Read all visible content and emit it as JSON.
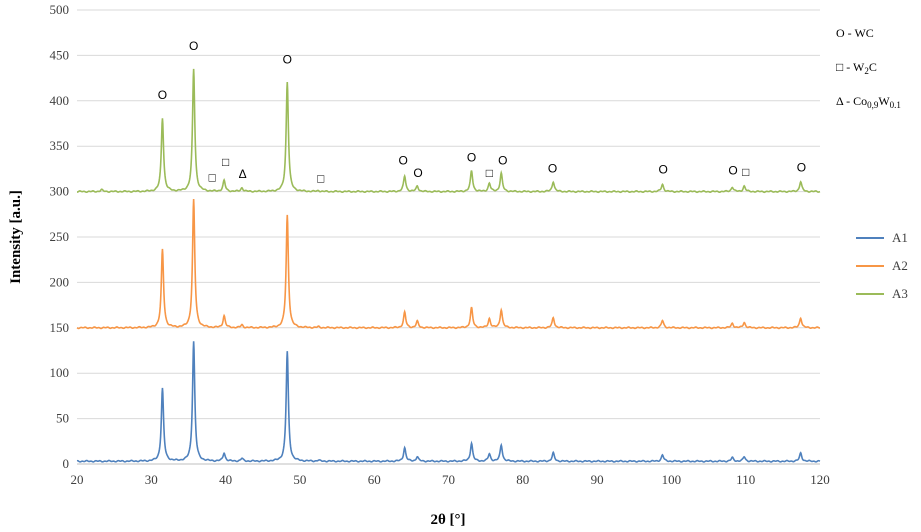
{
  "chart_data": {
    "type": "line",
    "title": "",
    "xlabel": "2θ [°]",
    "ylabel": "Intensity [a.u.]",
    "xlim": [
      20,
      120
    ],
    "ylim": [
      0,
      500
    ],
    "xticks": [
      20,
      30,
      40,
      50,
      60,
      70,
      80,
      90,
      100,
      110,
      120
    ],
    "yticks": [
      0,
      50,
      100,
      150,
      200,
      250,
      300,
      350,
      400,
      450,
      500
    ],
    "grid": "horizontal",
    "legend_position": "right",
    "series": [
      {
        "name": "A1",
        "color": "#4f81bd",
        "baseline": 3,
        "peaks": [
          [
            31.5,
            80
          ],
          [
            35.7,
            132
          ],
          [
            39.8,
            9
          ],
          [
            42.2,
            3
          ],
          [
            48.3,
            121
          ],
          [
            52.5,
            1
          ],
          [
            64.1,
            15
          ],
          [
            65.8,
            5
          ],
          [
            73.1,
            20
          ],
          [
            75.5,
            8
          ],
          [
            77.1,
            18
          ],
          [
            84.1,
            9
          ],
          [
            98.8,
            7
          ],
          [
            108.2,
            4
          ],
          [
            109.8,
            5
          ],
          [
            117.4,
            9
          ]
        ]
      },
      {
        "name": "A2",
        "color": "#f79646",
        "baseline": 150,
        "peaks": [
          [
            31.5,
            86
          ],
          [
            35.7,
            141
          ],
          [
            39.8,
            13
          ],
          [
            42.2,
            3
          ],
          [
            48.3,
            124
          ],
          [
            52.5,
            1
          ],
          [
            64.1,
            17
          ],
          [
            65.8,
            7
          ],
          [
            73.1,
            22
          ],
          [
            75.5,
            10
          ],
          [
            77.1,
            20
          ],
          [
            84.1,
            11
          ],
          [
            98.8,
            8
          ],
          [
            108.2,
            5
          ],
          [
            109.8,
            6
          ],
          [
            117.4,
            11
          ]
        ]
      },
      {
        "name": "A3",
        "color": "#9bbb59",
        "baseline": 300,
        "peaks": [
          [
            23.3,
            2
          ],
          [
            31.5,
            81
          ],
          [
            35.7,
            135
          ],
          [
            39.8,
            12
          ],
          [
            42.2,
            4
          ],
          [
            48.3,
            121
          ],
          [
            52.5,
            1
          ],
          [
            64.1,
            17
          ],
          [
            65.8,
            6
          ],
          [
            73.1,
            23
          ],
          [
            75.5,
            9
          ],
          [
            77.1,
            20
          ],
          [
            84.1,
            11
          ],
          [
            98.8,
            8
          ],
          [
            108.2,
            5
          ],
          [
            109.8,
            6
          ],
          [
            117.4,
            11
          ]
        ]
      }
    ],
    "annotations": [
      {
        "text": "O",
        "x": 31.5,
        "y": 402
      },
      {
        "text": "O",
        "x": 35.7,
        "y": 456
      },
      {
        "text": "□",
        "x": 38.2,
        "y": 311
      },
      {
        "text": "□",
        "x": 40.0,
        "y": 328
      },
      {
        "text": "Δ",
        "x": 42.3,
        "y": 315
      },
      {
        "text": "O",
        "x": 48.3,
        "y": 441
      },
      {
        "text": "□",
        "x": 52.8,
        "y": 310
      },
      {
        "text": "O",
        "x": 63.9,
        "y": 330
      },
      {
        "text": "O",
        "x": 65.9,
        "y": 316
      },
      {
        "text": "O",
        "x": 73.1,
        "y": 333
      },
      {
        "text": "□",
        "x": 75.5,
        "y": 316
      },
      {
        "text": "O",
        "x": 77.3,
        "y": 330
      },
      {
        "text": "O",
        "x": 84.0,
        "y": 321
      },
      {
        "text": "O",
        "x": 98.9,
        "y": 320
      },
      {
        "text": "O",
        "x": 108.3,
        "y": 319
      },
      {
        "text": "□",
        "x": 110.0,
        "y": 317
      },
      {
        "text": "O",
        "x": 117.5,
        "y": 322
      }
    ],
    "phase_key": [
      {
        "symbol": "O",
        "label": "WC"
      },
      {
        "symbol": "□",
        "label": "W",
        "sub": "2",
        "suffix": "C"
      },
      {
        "symbol": "Δ",
        "label": "Co",
        "sub": "0,9",
        "suffix": "W",
        "sub2": "0.1"
      }
    ]
  }
}
